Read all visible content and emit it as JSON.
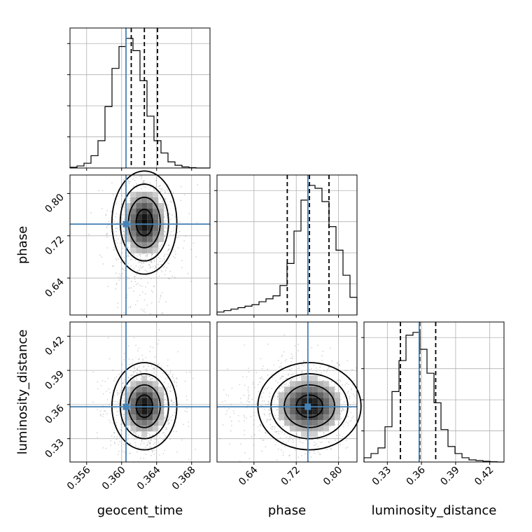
{
  "chart_data": {
    "type": "corner",
    "parameters": [
      "geocent_time",
      "phase",
      "luminosity_distance"
    ],
    "truth": {
      "geocent_time": 0.3605,
      "phase": 0.742,
      "luminosity_distance": 0.358
    },
    "truth_color": "#4682b4",
    "quantiles": {
      "geocent_time": [
        0.3611,
        0.3626,
        0.3641
      ],
      "phase": [
        0.703,
        0.745,
        0.782
      ],
      "luminosity_distance": [
        0.3415,
        0.3585,
        0.3725
      ]
    },
    "axis_ranges": {
      "geocent_time": [
        0.3541,
        0.3701
      ],
      "phase": [
        0.57,
        0.835
      ],
      "luminosity_distance": [
        0.3095,
        0.4325
      ]
    },
    "ticks": {
      "geocent_time": {
        "values": [
          0.356,
          0.36,
          0.364,
          0.368
        ],
        "labels": [
          "0.356",
          "0.360",
          "0.364",
          "0.368"
        ]
      },
      "phase": {
        "values": [
          0.64,
          0.72,
          0.8
        ],
        "labels": [
          "0.64",
          "0.72",
          "0.80"
        ]
      },
      "luminosity_distance": {
        "values": [
          0.33,
          0.36,
          0.39,
          0.42
        ],
        "labels": [
          "0.33",
          "0.36",
          "0.39",
          "0.42"
        ]
      }
    },
    "histograms": {
      "geocent_time": {
        "edges_start": 0.3541,
        "bin_width": 0.0008,
        "counts": [
          0.5,
          1.5,
          3.5,
          9,
          20,
          45,
          73,
          89,
          95,
          86,
          64,
          38,
          20,
          11,
          4.5,
          2,
          0.8,
          0.3,
          0,
          0
        ]
      },
      "phase": {
        "edges_start": 0.57,
        "bin_width": 0.01325,
        "counts": [
          2,
          3,
          4,
          5,
          6,
          7,
          9,
          11,
          13,
          20,
          35,
          57,
          78,
          88,
          86,
          77,
          60,
          44,
          27,
          12
        ]
      },
      "luminosity_distance": {
        "edges_start": 0.3095,
        "bin_width": 0.00615,
        "counts": [
          3,
          6,
          10,
          25,
          50,
          72,
          90,
          92,
          80,
          63,
          42,
          23,
          11,
          6,
          3,
          1.5,
          1,
          0.5,
          0.2,
          0
        ]
      }
    },
    "grid": true
  }
}
